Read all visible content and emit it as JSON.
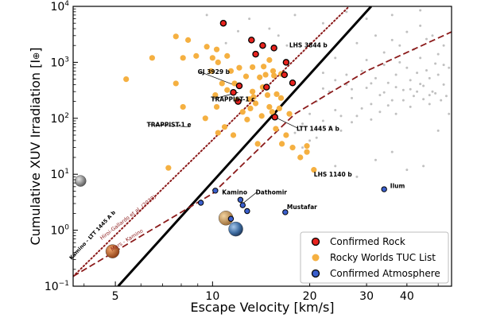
{
  "chart_data": {
    "type": "scatter",
    "xlabel": "Escape Velocity [km/s]",
    "ylabel": "Cumulative XUV Irradiation [I",
    "ylabel_symbol": "⊕",
    "ylabel_close": "]",
    "xscale": "log",
    "yscale": "log",
    "xlim": [
      3.7,
      55
    ],
    "ylim": [
      0.1,
      10000
    ],
    "x_ticks": [
      {
        "value": 5,
        "label": "5"
      },
      {
        "value": 10,
        "label": "10"
      },
      {
        "value": 20,
        "label": "20"
      },
      {
        "value": 30,
        "label": "30"
      },
      {
        "value": 40,
        "label": "40"
      }
    ],
    "x_minor_ticks": [
      4,
      6,
      7,
      8,
      9,
      50
    ],
    "y_ticks": [
      {
        "value": 0.1,
        "base": "10",
        "exp": "−1"
      },
      {
        "value": 1,
        "base": "10",
        "exp": "0"
      },
      {
        "value": 10,
        "base": "10",
        "exp": "1"
      },
      {
        "value": 100,
        "base": "10",
        "exp": "2"
      },
      {
        "value": 1000,
        "base": "10",
        "exp": "3"
      },
      {
        "value": 10000,
        "base": "10",
        "exp": "4"
      }
    ],
    "colors": {
      "rock": "#e8231e",
      "rocky_tuc": "#f5b041",
      "atmosphere": "#3a5fcd",
      "shoreline": "#000000",
      "dashed": "#8b1a1a",
      "dotted": "#8b1a1a",
      "background_dots": "#c0c0c0"
    },
    "lines": [
      {
        "name": "Kamino - LTT 1445 A b",
        "style": "solid",
        "points": [
          [
            5.1,
            0.1
          ],
          [
            31,
            10000
          ]
        ]
      },
      {
        "name": "Mars - Kamino",
        "style": "dashed",
        "points": [
          [
            3.7,
            0.15
          ],
          [
            10,
            4.5
          ],
          [
            18,
            120
          ],
          [
            30,
            700
          ],
          [
            55,
            3500
          ]
        ]
      },
      {
        "name": "Hiroi-Gallardo et al. (2020)",
        "style": "dotted",
        "points": [
          [
            3.7,
            0.15
          ],
          [
            26.5,
            10000
          ]
        ]
      }
    ],
    "series": [
      {
        "name": "Confirmed Rock",
        "points": [
          [
            10.8,
            5000
          ],
          [
            13.2,
            2500
          ],
          [
            13.6,
            1400
          ],
          [
            14.3,
            2000
          ],
          [
            15.5,
            1800
          ],
          [
            16.7,
            600
          ],
          [
            16.9,
            1000
          ],
          [
            17.7,
            430
          ],
          [
            14.7,
            360
          ],
          [
            12.1,
            380
          ],
          [
            11.6,
            290
          ],
          [
            12.0,
            200
          ],
          [
            15.6,
            105
          ]
        ]
      },
      {
        "name": "Rocky Worlds TUC List",
        "points": [
          [
            5.4,
            500
          ],
          [
            6.5,
            1200
          ],
          [
            7.7,
            2900
          ],
          [
            8.1,
            1200
          ],
          [
            7.7,
            420
          ],
          [
            8.1,
            160
          ],
          [
            8.4,
            2500
          ],
          [
            8.9,
            1300
          ],
          [
            9.6,
            1900
          ],
          [
            10.0,
            1200
          ],
          [
            9.9,
            700
          ],
          [
            10.3,
            1700
          ],
          [
            10.4,
            1000
          ],
          [
            10.7,
            420
          ],
          [
            11.1,
            1300
          ],
          [
            11.1,
            320
          ],
          [
            11.4,
            700
          ],
          [
            11.7,
            420
          ],
          [
            11.9,
            210
          ],
          [
            12.1,
            800
          ],
          [
            12.7,
            560
          ],
          [
            13.0,
            220
          ],
          [
            13.3,
            820
          ],
          [
            13.3,
            300
          ],
          [
            14.0,
            540
          ],
          [
            14.4,
            840
          ],
          [
            14.6,
            600
          ],
          [
            14.3,
            360
          ],
          [
            14.8,
            260
          ],
          [
            15.0,
            1100
          ],
          [
            15.5,
            580
          ],
          [
            15.8,
            270
          ],
          [
            16.3,
            230
          ],
          [
            15.0,
            160
          ],
          [
            15.3,
            130
          ],
          [
            14.2,
            110
          ],
          [
            15.7,
            65
          ],
          [
            16.4,
            35
          ],
          [
            16.9,
            50
          ],
          [
            17.7,
            30
          ],
          [
            18.7,
            20
          ],
          [
            19.6,
            25
          ],
          [
            19.6,
            32
          ],
          [
            20.6,
            12
          ],
          [
            9.5,
            100
          ],
          [
            10.3,
            160
          ],
          [
            10.9,
            70
          ],
          [
            12.4,
            130
          ],
          [
            13.1,
            150
          ],
          [
            7.3,
            13
          ],
          [
            11.6,
            50
          ],
          [
            10.4,
            55
          ],
          [
            13.8,
            35
          ],
          [
            12.8,
            95
          ],
          [
            16.1,
            150
          ],
          [
            13.4,
            240
          ],
          [
            17.3,
            120
          ],
          [
            13.6,
            185
          ],
          [
            16.3,
            620
          ],
          [
            15.4,
            700
          ],
          [
            10.2,
            260
          ]
        ]
      },
      {
        "name": "Confirmed Atmosphere",
        "points": [
          [
            9.2,
            3.1
          ],
          [
            10.2,
            5.1
          ],
          [
            11.4,
            1.6
          ],
          [
            12.2,
            3.5
          ],
          [
            12.4,
            2.8
          ],
          [
            12.8,
            2.2
          ],
          [
            16.8,
            2.1
          ],
          [
            34.0,
            5.4
          ]
        ]
      }
    ],
    "annotations": [
      {
        "text": "LHS 3844 b",
        "x": 16.9,
        "y": 2100
      },
      {
        "text": "GJ 3929 b",
        "x": 9.2,
        "y": 620
      },
      {
        "text": "TRAPPIST-1 c",
        "x": 10.0,
        "y": 200
      },
      {
        "text": "TRAPPIST-1 e",
        "x": 6.4,
        "y": 70
      },
      {
        "text": "LTT 1445 A b",
        "x": 18.0,
        "y": 60
      },
      {
        "text": "LHS 1140 b",
        "x": 20.6,
        "y": 10
      },
      {
        "text": "Kamino",
        "x": 10.7,
        "y": 4.4
      },
      {
        "text": "Dathomir",
        "x": 13.6,
        "y": 4.4
      },
      {
        "text": "Mustafar",
        "x": 17.0,
        "y": 2.4
      },
      {
        "text": "Ilum",
        "x": 35.5,
        "y": 5.7
      }
    ],
    "line_labels": [
      {
        "text": "Kamino - LTT 1445 A b",
        "style": "solid"
      },
      {
        "text": "Hiroi-Gallardo et al. (2020)",
        "style": "dotted"
      },
      {
        "text": "Mars - Kamino",
        "style": "dashed"
      }
    ],
    "solar_system_bodies": [
      {
        "name": "Moon",
        "x": 3.9,
        "y": 7.6,
        "color": "#9a9a9a"
      },
      {
        "name": "Mars",
        "x": 4.9,
        "y": 0.42,
        "color": "#c1662a"
      },
      {
        "name": "Venus",
        "x": 11.0,
        "y": 1.65,
        "color": "#d8a36a"
      },
      {
        "name": "Earth",
        "x": 11.8,
        "y": 1.05,
        "color": "#3f6ea3"
      }
    ],
    "background_points": [
      [
        18,
        55
      ],
      [
        19,
        80
      ],
      [
        20,
        120
      ],
      [
        21,
        200
      ],
      [
        22,
        90
      ],
      [
        23,
        300
      ],
      [
        24,
        140
      ],
      [
        25,
        60
      ],
      [
        26,
        400
      ],
      [
        27,
        230
      ],
      [
        28,
        110
      ],
      [
        29,
        700
      ],
      [
        30,
        350
      ],
      [
        31,
        180
      ],
      [
        32,
        520
      ],
      [
        33,
        260
      ],
      [
        34,
        900
      ],
      [
        35,
        430
      ],
      [
        36,
        210
      ],
      [
        37,
        600
      ],
      [
        38,
        1000
      ],
      [
        39,
        320
      ],
      [
        40,
        800
      ],
      [
        41,
        480
      ],
      [
        42,
        250
      ],
      [
        43,
        650
      ],
      [
        44,
        1200
      ],
      [
        45,
        380
      ],
      [
        46,
        720
      ],
      [
        47,
        520
      ],
      [
        48,
        300
      ],
      [
        49,
        950
      ],
      [
        50,
        600
      ],
      [
        52,
        400
      ],
      [
        54,
        800
      ],
      [
        21,
        45
      ],
      [
        23,
        70
      ],
      [
        25,
        110
      ],
      [
        27,
        85
      ],
      [
        29,
        150
      ],
      [
        31,
        95
      ],
      [
        33,
        130
      ],
      [
        35,
        170
      ],
      [
        37,
        120
      ],
      [
        39,
        210
      ],
      [
        41,
        160
      ],
      [
        43,
        300
      ],
      [
        45,
        220
      ],
      [
        47,
        180
      ],
      [
        49,
        280
      ],
      [
        22,
        340
      ],
      [
        26,
        600
      ],
      [
        30,
        1100
      ],
      [
        34,
        1500
      ],
      [
        38,
        2000
      ],
      [
        42,
        1700
      ],
      [
        46,
        2600
      ],
      [
        50,
        1400
      ],
      [
        24,
        1200
      ],
      [
        28,
        2200
      ],
      [
        32,
        3000
      ],
      [
        36,
        2500
      ],
      [
        40,
        3500
      ],
      [
        44,
        4500
      ],
      [
        48,
        3000
      ],
      [
        52,
        2000
      ],
      [
        19,
        30
      ],
      [
        20,
        40
      ],
      [
        17,
        2000
      ],
      [
        15,
        4000
      ],
      [
        12,
        3600
      ],
      [
        11,
        2200
      ],
      [
        14,
        500
      ],
      [
        16,
        3000
      ],
      [
        9.6,
        7000
      ],
      [
        13,
        6000
      ],
      [
        18,
        7000
      ],
      [
        22,
        5000
      ],
      [
        26,
        8000
      ],
      [
        30,
        6000
      ],
      [
        36,
        7000
      ],
      [
        44,
        8500
      ],
      [
        40,
        12
      ],
      [
        28,
        9
      ],
      [
        24,
        14
      ],
      [
        32,
        18
      ],
      [
        36,
        25
      ],
      [
        45,
        14
      ],
      [
        50,
        60
      ],
      [
        53,
        250
      ],
      [
        54,
        120
      ],
      [
        52,
        900
      ],
      [
        22,
        650
      ],
      [
        24,
        480
      ],
      [
        27,
        330
      ],
      [
        31,
        420
      ],
      [
        34,
        290
      ],
      [
        37,
        360
      ],
      [
        41,
        330
      ],
      [
        44,
        410
      ],
      [
        47,
        260
      ],
      [
        51,
        210
      ]
    ],
    "legend": {
      "position": "lower-right",
      "entries": [
        {
          "label": "Confirmed Rock",
          "color": "#e8231e",
          "edge": "#000000"
        },
        {
          "label": "Rocky Worlds TUC List",
          "color": "#f5b041",
          "edge": "none"
        },
        {
          "label": "Confirmed Atmosphere",
          "color": "#3a5fcd",
          "edge": "#000000"
        }
      ]
    }
  }
}
